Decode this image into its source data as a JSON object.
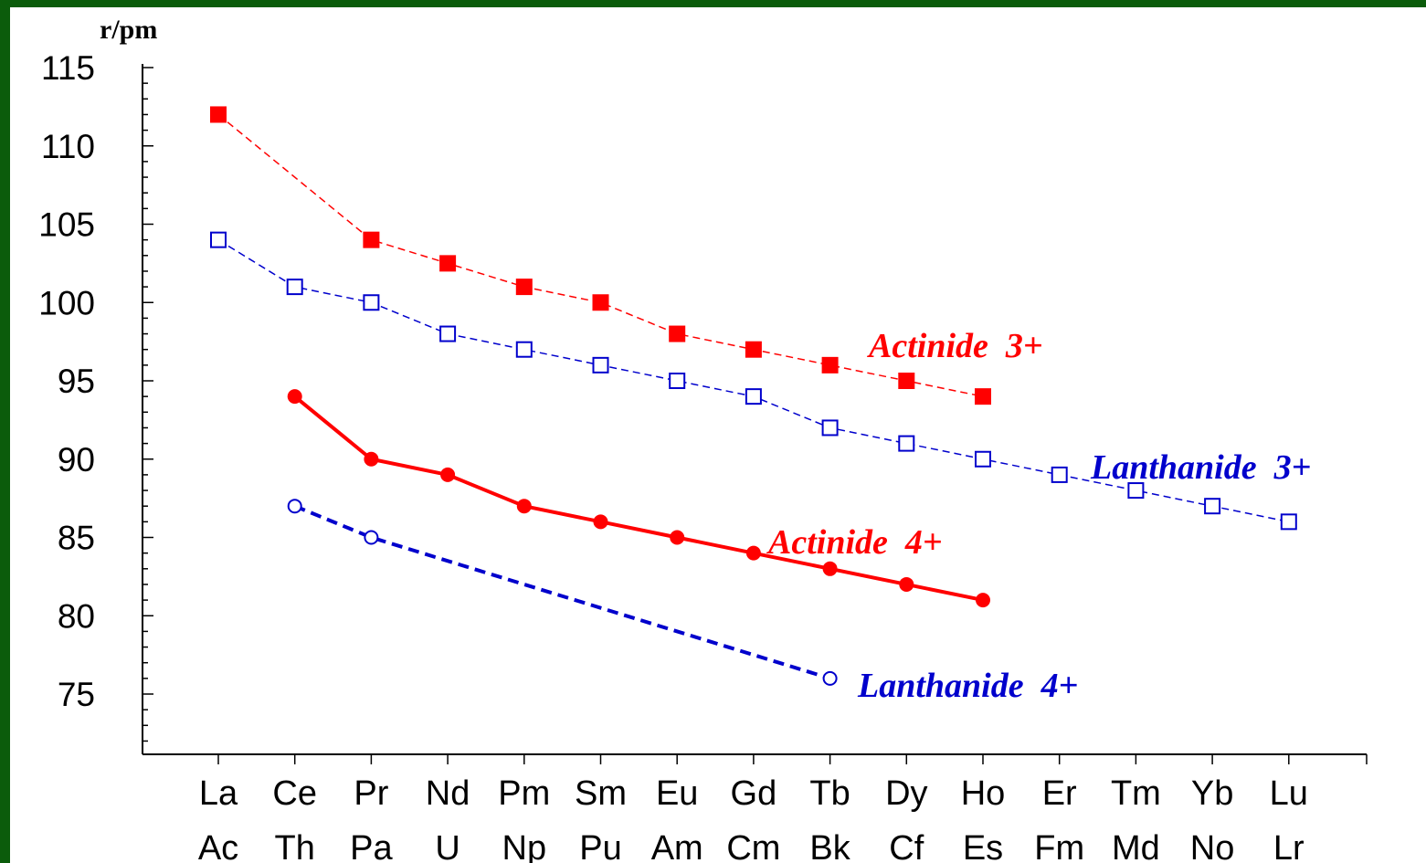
{
  "chart_data": {
    "type": "line",
    "ylabel": "r/pm",
    "ylim": [
      72,
      115
    ],
    "yticks": [
      115,
      110,
      105,
      100,
      95,
      90,
      85,
      80,
      75
    ],
    "categories": [
      "La",
      "Ce",
      "Pr",
      "Nd",
      "Pm",
      "Sm",
      "Eu",
      "Gd",
      "Tb",
      "Dy",
      "Ho",
      "Er",
      "Tm",
      "Yb",
      "Lu"
    ],
    "categories_row2": [
      "Ac",
      "Th",
      "Pa",
      "U",
      "Np",
      "Pu",
      "Am",
      "Cm",
      "Bk",
      "Cf",
      "Es",
      "Fm",
      "Md",
      "No",
      "Lr"
    ],
    "series": [
      {
        "name": "Actinide  3+",
        "color": "#ff0000",
        "marker": "filled-square",
        "line": "thin-dashed",
        "values": [
          112,
          null,
          104,
          102.5,
          101,
          100,
          98,
          97,
          96,
          95,
          94,
          null,
          null,
          null,
          null
        ]
      },
      {
        "name": "Lanthanide  3+",
        "color": "#0000cc",
        "marker": "open-square",
        "line": "thin-dashed",
        "values": [
          104,
          101,
          100,
          98,
          97,
          96,
          95,
          94,
          92,
          91,
          90,
          89,
          88,
          87,
          86
        ]
      },
      {
        "name": "Actinide  4+",
        "color": "#ff0000",
        "marker": "filled-circle",
        "line": "thick-solid",
        "values": [
          null,
          94,
          90,
          89,
          87,
          86,
          85,
          84,
          83,
          82,
          81,
          null,
          null,
          null,
          null
        ]
      },
      {
        "name": "Lanthanide  4+",
        "color": "#0000cc",
        "marker": "open-circle",
        "line": "thick-dashed",
        "values": [
          null,
          87,
          85,
          null,
          null,
          null,
          null,
          null,
          76,
          null,
          null,
          null,
          null,
          null,
          null
        ]
      }
    ]
  }
}
